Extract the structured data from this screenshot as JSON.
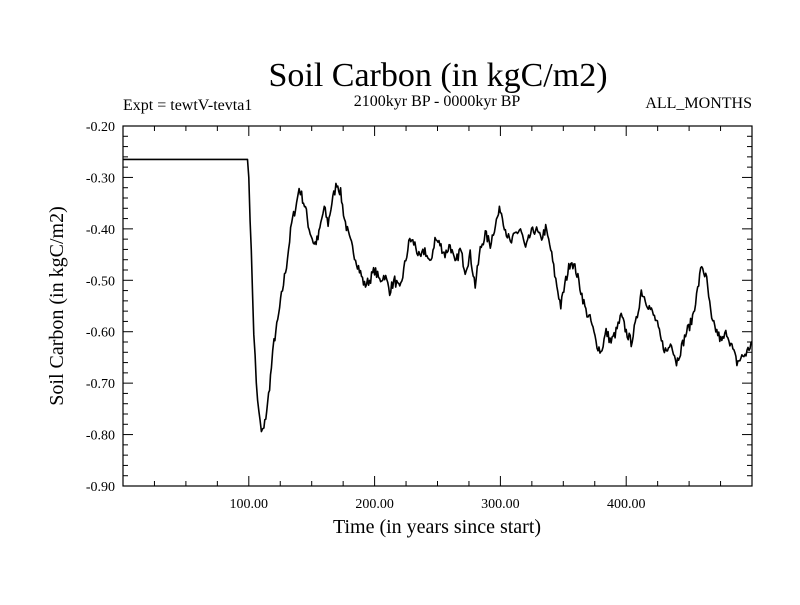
{
  "chart_data": {
    "type": "line",
    "title": "Soil Carbon (in kgC/m2)",
    "subtitle_left": "Expt = tewtV-tevta1",
    "subtitle_center": "2100kyr BP - 0000kyr BP",
    "subtitle_right": "ALL_MONTHS",
    "xlabel": "Time (in years since start)",
    "ylabel": "Soil Carbon (in kgC/m2)",
    "xlim": [
      0,
      500
    ],
    "ylim": [
      -0.9,
      -0.2
    ],
    "xticks": [
      100,
      200,
      300,
      400
    ],
    "xtick_labels": [
      "100.00",
      "200.00",
      "300.00",
      "400.00"
    ],
    "yticks": [
      -0.2,
      -0.3,
      -0.4,
      -0.5,
      -0.6,
      -0.7,
      -0.8,
      -0.9
    ],
    "ytick_labels": [
      "-0.20",
      "-0.30",
      "-0.40",
      "-0.50",
      "-0.60",
      "-0.70",
      "-0.80",
      "-0.90"
    ],
    "grid": false,
    "series": [
      {
        "name": "Soil Carbon",
        "color": "#000000",
        "x": [
          0,
          99,
          100,
          102,
          104,
          106,
          108,
          110,
          112,
          115,
          118,
          120,
          123,
          126,
          130,
          134,
          138,
          140,
          142,
          145,
          148,
          152,
          155,
          158,
          160,
          163,
          166,
          170,
          173,
          176,
          180,
          184,
          188,
          192,
          196,
          200,
          204,
          208,
          212,
          216,
          220,
          224,
          228,
          232,
          236,
          240,
          244,
          248,
          252,
          256,
          260,
          264,
          268,
          272,
          276,
          280,
          284,
          288,
          292,
          296,
          300,
          304,
          308,
          312,
          316,
          320,
          324,
          328,
          332,
          336,
          340,
          344,
          348,
          352,
          356,
          360,
          364,
          368,
          372,
          376,
          380,
          384,
          388,
          392,
          396,
          400,
          404,
          408,
          412,
          416,
          420,
          424,
          428,
          432,
          436,
          440,
          444,
          448,
          452,
          456,
          460,
          464,
          468,
          472,
          476,
          480,
          484,
          488,
          492,
          496,
          500
        ],
        "y": [
          -0.265,
          -0.265,
          -0.3,
          -0.45,
          -0.6,
          -0.7,
          -0.76,
          -0.795,
          -0.79,
          -0.74,
          -0.67,
          -0.62,
          -0.58,
          -0.53,
          -0.47,
          -0.39,
          -0.35,
          -0.32,
          -0.335,
          -0.36,
          -0.4,
          -0.43,
          -0.42,
          -0.38,
          -0.36,
          -0.39,
          -0.35,
          -0.31,
          -0.33,
          -0.38,
          -0.42,
          -0.45,
          -0.48,
          -0.51,
          -0.5,
          -0.48,
          -0.5,
          -0.49,
          -0.52,
          -0.5,
          -0.52,
          -0.47,
          -0.42,
          -0.43,
          -0.46,
          -0.44,
          -0.47,
          -0.42,
          -0.43,
          -0.45,
          -0.43,
          -0.47,
          -0.44,
          -0.48,
          -0.45,
          -0.51,
          -0.44,
          -0.41,
          -0.43,
          -0.39,
          -0.36,
          -0.4,
          -0.43,
          -0.41,
          -0.4,
          -0.44,
          -0.41,
          -0.4,
          -0.42,
          -0.4,
          -0.44,
          -0.5,
          -0.55,
          -0.5,
          -0.46,
          -0.48,
          -0.52,
          -0.56,
          -0.58,
          -0.62,
          -0.64,
          -0.6,
          -0.62,
          -0.6,
          -0.57,
          -0.6,
          -0.62,
          -0.58,
          -0.52,
          -0.54,
          -0.56,
          -0.58,
          -0.62,
          -0.64,
          -0.62,
          -0.66,
          -0.63,
          -0.6,
          -0.58,
          -0.53,
          -0.47,
          -0.5,
          -0.58,
          -0.6,
          -0.62,
          -0.6,
          -0.63,
          -0.66,
          -0.65,
          -0.64,
          -0.62
        ]
      }
    ]
  }
}
